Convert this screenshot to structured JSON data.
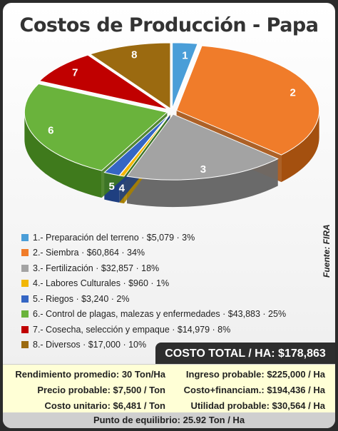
{
  "chart_data": {
    "type": "pie",
    "title": "Costos de Producción - Papa",
    "source_note": "Fuente: FIRA",
    "slices": [
      {
        "label": "1",
        "legend": "1.- Preparación del terreno · $5,079 · 3%",
        "value": 5079,
        "percent": 3,
        "color": "#4a9ed8",
        "dark": "#2f6f9e"
      },
      {
        "label": "2",
        "legend": "2.- Siembra · $60,864 · 34%",
        "value": 60864,
        "percent": 34,
        "color": "#f07c2a",
        "dark": "#a4500f"
      },
      {
        "label": "3",
        "legend": "3.- Fertilización · $32,857 · 18%",
        "value": 32857,
        "percent": 18,
        "color": "#a3a3a3",
        "dark": "#6a6a6a"
      },
      {
        "label": "4",
        "legend": "4.- Labores Culturales · $960 · 1%",
        "value": 960,
        "percent": 1,
        "color": "#f2b705",
        "dark": "#a77f00"
      },
      {
        "label": "5",
        "legend": "5.- Riegos · $3,240 · 2%",
        "value": 3240,
        "percent": 2,
        "color": "#3566c4",
        "dark": "#1f3f80"
      },
      {
        "label": "6",
        "legend": "6.- Control de plagas, malezas y enfermedades · $43,883 · 25%",
        "value": 43883,
        "percent": 25,
        "color": "#6ab33c",
        "dark": "#3f7a1c"
      },
      {
        "label": "7",
        "legend": "7.- Cosecha, selección y empaque · $14,979 · 8%",
        "value": 14979,
        "percent": 8,
        "color": "#c00000",
        "dark": "#7a0000"
      },
      {
        "label": "8",
        "legend": "8.- Diversos · $17,000 · 10%",
        "value": 17000,
        "percent": 10,
        "color": "#9b6a10",
        "dark": "#5f3f05"
      }
    ]
  },
  "total_label": "COSTO TOTAL / HA: $178,863",
  "stats": {
    "rendimiento": "Rendimiento promedio: 30 Ton/Ha",
    "ingreso": "Ingreso probable: $225,000 / Ha",
    "precio": "Precio probable: $7,500 / Ton",
    "costo_fin": "Costo+financiam.: $194,436 / Ha",
    "costo_unit": "Costo unitario: $6,481 / Ton",
    "utilidad": "Utilidad probable: $30,564 / Ha",
    "equilibrio": "Punto de equilibrio: 25.92 Ton / Ha"
  }
}
